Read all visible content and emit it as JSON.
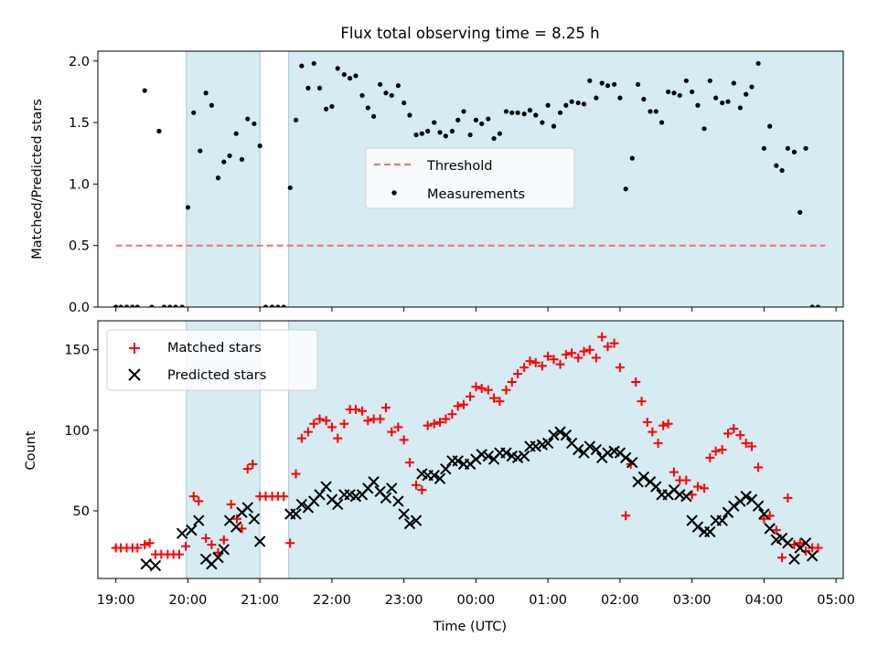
{
  "chart_data": [
    {
      "type": "scatter",
      "title": "Flux total observing time = 8.25 h",
      "xlabel": "",
      "ylabel": "Matched/Predicted stars",
      "xlim": [
        18.75,
        29.1
      ],
      "ylim": [
        0,
        2.08
      ],
      "yticks": [
        0.0,
        0.5,
        1.0,
        1.5,
        2.0
      ],
      "ytick_labels": [
        "0.0",
        "0.5",
        "1.0",
        "1.5",
        "2.0"
      ],
      "shaded_spans": [
        [
          19.98,
          21.0
        ],
        [
          21.4,
          29.67
        ]
      ],
      "legend": {
        "location": "center",
        "entries": [
          "Threshold",
          "Measurements"
        ]
      },
      "series": [
        {
          "name": "Threshold",
          "style": "dashed",
          "color": "#f07070",
          "x": [
            19.0,
            28.85
          ],
          "y": [
            0.5,
            0.5
          ]
        },
        {
          "name": "Measurements",
          "style": "dot",
          "color": "#000000",
          "x": [
            19.0,
            19.07,
            19.15,
            19.23,
            19.3,
            19.4,
            19.5,
            19.6,
            19.67,
            19.75,
            19.83,
            19.92,
            20.0,
            20.08,
            20.17,
            20.25,
            20.33,
            20.42,
            20.5,
            20.58,
            20.67,
            20.75,
            20.83,
            20.92,
            21.0,
            21.08,
            21.17,
            21.25,
            21.33,
            21.42,
            21.5,
            21.58,
            21.67,
            21.75,
            21.83,
            21.92,
            22.0,
            22.08,
            22.17,
            22.25,
            22.33,
            22.42,
            22.5,
            22.58,
            22.67,
            22.75,
            22.83,
            22.92,
            23.0,
            23.08,
            23.17,
            23.25,
            23.33,
            23.42,
            23.5,
            23.58,
            23.67,
            23.75,
            23.83,
            23.92,
            24.0,
            24.08,
            24.17,
            24.25,
            24.33,
            24.42,
            24.5,
            24.58,
            24.67,
            24.75,
            24.83,
            24.92,
            25.0,
            25.08,
            25.17,
            25.25,
            25.33,
            25.42,
            25.5,
            25.58,
            25.67,
            25.75,
            25.83,
            25.92,
            26.0,
            26.08,
            26.17,
            26.25,
            26.33,
            26.42,
            26.5,
            26.58,
            26.67,
            26.75,
            26.83,
            26.92,
            27.0,
            27.08,
            27.17,
            27.25,
            27.33,
            27.42,
            27.5,
            27.58,
            27.67,
            27.75,
            27.83,
            27.92,
            28.0,
            28.08,
            28.17,
            28.25,
            28.33,
            28.42,
            28.5,
            28.58,
            28.67,
            28.75
          ],
          "y": [
            0.0,
            0.0,
            0.0,
            0.0,
            0.0,
            1.76,
            0.0,
            1.43,
            0.0,
            0.0,
            0.0,
            0.0,
            0.81,
            1.58,
            1.27,
            1.74,
            1.64,
            1.05,
            1.18,
            1.23,
            1.41,
            1.2,
            1.53,
            1.49,
            1.31,
            0.0,
            0.0,
            0.0,
            0.0,
            0.97,
            1.52,
            1.96,
            1.78,
            1.98,
            1.78,
            1.61,
            1.63,
            1.94,
            1.89,
            1.86,
            1.88,
            1.72,
            1.62,
            1.55,
            1.81,
            1.74,
            1.72,
            1.8,
            1.66,
            1.56,
            1.4,
            1.41,
            1.43,
            1.5,
            1.42,
            1.39,
            1.43,
            1.52,
            1.59,
            1.4,
            1.52,
            1.49,
            1.53,
            1.37,
            1.41,
            1.59,
            1.58,
            1.58,
            1.57,
            1.6,
            1.56,
            1.5,
            1.64,
            1.47,
            1.58,
            1.64,
            1.67,
            1.66,
            1.65,
            1.84,
            1.7,
            1.82,
            1.8,
            1.81,
            1.7,
            0.96,
            1.21,
            1.81,
            1.69,
            1.59,
            1.59,
            1.5,
            1.75,
            1.74,
            1.72,
            1.84,
            1.75,
            1.64,
            1.45,
            1.84,
            1.7,
            1.66,
            1.67,
            1.82,
            1.62,
            1.73,
            1.79,
            1.98,
            1.29,
            1.47,
            1.15,
            1.11,
            1.29,
            1.26,
            0.77,
            1.29,
            0.0,
            0.0
          ]
        }
      ]
    },
    {
      "type": "scatter",
      "title": "",
      "xlabel": "Time (UTC)",
      "ylabel": "Count",
      "xlim": [
        18.75,
        29.1
      ],
      "ylim": [
        8,
        168
      ],
      "yticks": [
        50,
        100,
        150
      ],
      "ytick_labels": [
        "50",
        "100",
        "150"
      ],
      "xticks": [
        19,
        20,
        21,
        22,
        23,
        24,
        25,
        26,
        27,
        28,
        29
      ],
      "xtick_labels": [
        "19:00",
        "20:00",
        "21:00",
        "22:00",
        "23:00",
        "00:00",
        "01:00",
        "02:00",
        "03:00",
        "04:00",
        "05:00"
      ],
      "shaded_spans": [
        [
          19.98,
          21.0
        ],
        [
          21.4,
          29.67
        ]
      ],
      "legend": {
        "location": "upper-left",
        "entries": [
          "Matched stars",
          "Predicted stars"
        ]
      },
      "series": [
        {
          "name": "Matched stars",
          "marker": "+",
          "color": "#ff0000",
          "x": [
            19.0,
            19.07,
            19.15,
            19.23,
            19.3,
            19.4,
            19.47,
            19.55,
            19.63,
            19.72,
            19.8,
            19.88,
            19.97,
            20.08,
            20.15,
            20.25,
            20.33,
            20.42,
            20.5,
            20.6,
            20.68,
            20.75,
            20.83,
            20.9,
            21.0,
            21.08,
            21.17,
            21.25,
            21.33,
            21.42,
            21.5,
            21.58,
            21.67,
            21.75,
            21.83,
            21.92,
            22.0,
            22.08,
            22.17,
            22.25,
            22.33,
            22.42,
            22.5,
            22.58,
            22.67,
            22.75,
            22.83,
            22.92,
            23.0,
            23.08,
            23.17,
            23.25,
            23.33,
            23.42,
            23.5,
            23.58,
            23.67,
            23.75,
            23.83,
            23.92,
            24.0,
            24.08,
            24.17,
            24.25,
            24.33,
            24.42,
            24.5,
            24.58,
            24.67,
            24.75,
            24.83,
            24.92,
            25.0,
            25.08,
            25.17,
            25.25,
            25.33,
            25.42,
            25.5,
            25.58,
            25.67,
            25.75,
            25.83,
            25.92,
            26.0,
            26.08,
            26.15,
            26.22,
            26.3,
            26.38,
            26.45,
            26.53,
            26.6,
            26.67,
            26.75,
            26.83,
            26.92,
            27.0,
            27.08,
            27.17,
            27.25,
            27.33,
            27.42,
            27.5,
            27.58,
            27.67,
            27.75,
            27.83,
            27.92,
            28.0,
            28.08,
            28.17,
            28.25,
            28.33,
            28.42,
            28.5,
            28.58,
            28.67,
            28.75
          ],
          "y": [
            27,
            27,
            27,
            27,
            27,
            29,
            30,
            23,
            23,
            23,
            23,
            23,
            28,
            59,
            56,
            33,
            29,
            24,
            32,
            54,
            45,
            39,
            76,
            79,
            59,
            59,
            59,
            59,
            59,
            30,
            73,
            95,
            99,
            104,
            107,
            106,
            102,
            95,
            104,
            113,
            113,
            112,
            106,
            107,
            107,
            114,
            99,
            102,
            94,
            80,
            66,
            63,
            103,
            104,
            105,
            107,
            110,
            115,
            116,
            121,
            127,
            126,
            125,
            120,
            118,
            125,
            130,
            135,
            139,
            143,
            142,
            140,
            146,
            144,
            141,
            147,
            148,
            145,
            149,
            150,
            145,
            158,
            152,
            154,
            139,
            47,
            79,
            130,
            118,
            105,
            99,
            92,
            103,
            104,
            74,
            69,
            69,
            60,
            65,
            64,
            83,
            87,
            88,
            98,
            101,
            97,
            92,
            90,
            77,
            45,
            47,
            38,
            21,
            58,
            29,
            30,
            25,
            27,
            27
          ]
        },
        {
          "name": "Predicted stars",
          "marker": "x",
          "color": "#000000",
          "x": [
            19.42,
            19.55,
            19.92,
            20.05,
            20.15,
            20.25,
            20.33,
            20.42,
            20.5,
            20.58,
            20.67,
            20.75,
            20.83,
            20.92,
            21.0,
            21.42,
            21.5,
            21.58,
            21.67,
            21.75,
            21.83,
            21.92,
            22.0,
            22.08,
            22.17,
            22.25,
            22.33,
            22.42,
            22.5,
            22.58,
            22.67,
            22.75,
            22.83,
            22.92,
            23.0,
            23.08,
            23.17,
            23.25,
            23.33,
            23.42,
            23.5,
            23.58,
            23.67,
            23.75,
            23.83,
            23.92,
            24.0,
            24.08,
            24.17,
            24.25,
            24.33,
            24.42,
            24.5,
            24.58,
            24.67,
            24.75,
            24.83,
            24.92,
            25.0,
            25.08,
            25.17,
            25.25,
            25.33,
            25.42,
            25.5,
            25.58,
            25.67,
            25.75,
            25.83,
            25.92,
            26.0,
            26.08,
            26.17,
            26.25,
            26.33,
            26.42,
            26.5,
            26.58,
            26.67,
            26.75,
            26.83,
            26.92,
            27.0,
            27.08,
            27.17,
            27.25,
            27.33,
            27.42,
            27.5,
            27.58,
            27.67,
            27.75,
            27.83,
            27.92,
            28.0,
            28.08,
            28.17,
            28.25,
            28.33,
            28.42,
            28.5,
            28.58,
            28.67
          ],
          "y": [
            17,
            16,
            36,
            38,
            44,
            20,
            17,
            21,
            26,
            44,
            40,
            49,
            52,
            45,
            31,
            48,
            48,
            54,
            52,
            56,
            60,
            65,
            57,
            54,
            60,
            60,
            59,
            60,
            64,
            68,
            62,
            58,
            64,
            56,
            48,
            42,
            44,
            73,
            72,
            72,
            70,
            76,
            81,
            81,
            79,
            79,
            82,
            85,
            84,
            82,
            86,
            86,
            84,
            83,
            84,
            90,
            90,
            91,
            92,
            97,
            99,
            97,
            92,
            88,
            86,
            90,
            88,
            83,
            86,
            87,
            86,
            83,
            80,
            68,
            71,
            68,
            65,
            60,
            60,
            63,
            60,
            59,
            44,
            40,
            37,
            37,
            44,
            44,
            49,
            53,
            56,
            59,
            57,
            53,
            48,
            39,
            32,
            33,
            30,
            20,
            27,
            30,
            22
          ]
        }
      ]
    }
  ]
}
